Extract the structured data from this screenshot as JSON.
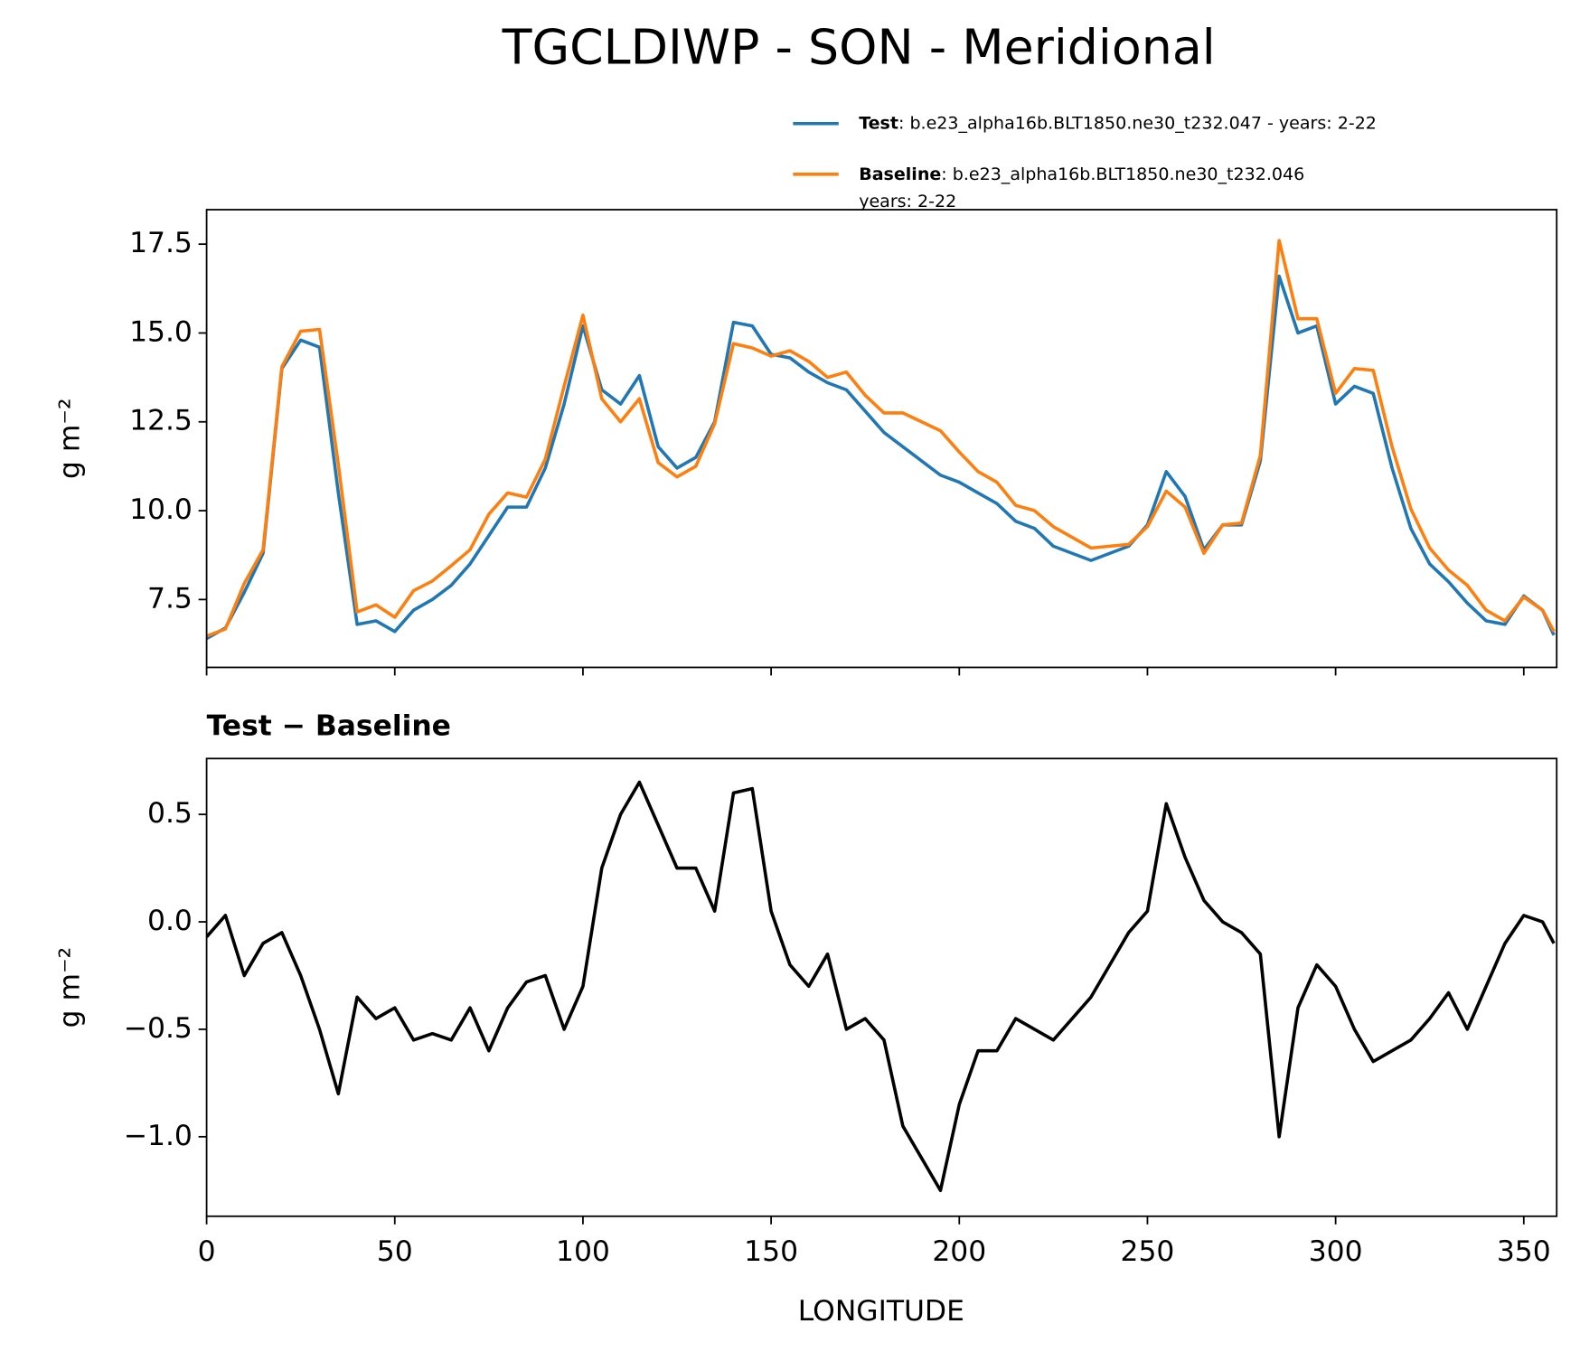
{
  "chart_data": [
    {
      "type": "line",
      "title": "TGCLDIWP - SON - Meridional",
      "ylabel": "g m⁻²",
      "x": [
        0,
        5,
        10,
        15,
        20,
        25,
        30,
        35,
        40,
        45,
        50,
        55,
        60,
        65,
        70,
        75,
        80,
        85,
        90,
        95,
        100,
        105,
        110,
        115,
        120,
        125,
        130,
        135,
        140,
        145,
        150,
        155,
        160,
        165,
        170,
        175,
        180,
        185,
        190,
        195,
        200,
        205,
        210,
        215,
        220,
        225,
        230,
        235,
        240,
        245,
        250,
        255,
        260,
        265,
        270,
        275,
        280,
        285,
        290,
        295,
        300,
        305,
        310,
        315,
        320,
        325,
        330,
        335,
        340,
        345,
        350,
        355,
        358
      ],
      "series": [
        {
          "name": "Test",
          "description": [
            ": b.e23_alpha16b.BLT1850.ne30_t232.047 - years: 2-22"
          ],
          "color": "#1f77b4",
          "values": [
            6.4,
            6.7,
            7.7,
            8.8,
            14.0,
            14.8,
            14.6,
            10.5,
            6.8,
            6.9,
            6.6,
            7.2,
            7.5,
            7.9,
            8.5,
            9.3,
            10.1,
            10.1,
            11.2,
            13.0,
            15.2,
            13.4,
            13.0,
            13.8,
            11.8,
            11.2,
            11.5,
            12.5,
            15.3,
            15.2,
            14.4,
            14.3,
            13.9,
            13.6,
            13.4,
            12.8,
            12.2,
            11.8,
            11.4,
            11.0,
            10.8,
            10.5,
            10.2,
            9.7,
            9.5,
            9.0,
            8.8,
            8.6,
            8.8,
            9.0,
            9.6,
            11.1,
            10.4,
            8.9,
            9.6,
            9.6,
            11.4,
            16.6,
            15.0,
            15.2,
            13.0,
            13.5,
            13.3,
            11.2,
            9.5,
            8.5,
            8.0,
            7.4,
            6.9,
            6.8,
            7.6,
            7.2,
            6.5
          ]
        },
        {
          "name": "Baseline",
          "description": [
            ": b.e23_alpha16b.BLT1850.ne30_t232.046",
            "years: 2-22"
          ],
          "color": "#ff7f0e",
          "values": [
            6.47,
            6.67,
            7.95,
            8.9,
            14.05,
            15.05,
            15.1,
            11.3,
            7.15,
            7.35,
            7.0,
            7.75,
            8.02,
            8.45,
            8.9,
            9.9,
            10.5,
            10.38,
            11.45,
            13.5,
            15.5,
            13.15,
            12.5,
            13.15,
            11.35,
            10.95,
            11.25,
            12.45,
            14.7,
            14.58,
            14.35,
            14.5,
            14.2,
            13.75,
            13.9,
            13.25,
            12.75,
            12.75,
            12.5,
            12.25,
            11.65,
            11.1,
            10.8,
            10.15,
            10.0,
            9.55,
            9.25,
            8.95,
            9.0,
            9.05,
            9.55,
            10.55,
            10.1,
            8.8,
            9.6,
            9.65,
            11.55,
            17.6,
            15.4,
            15.4,
            13.3,
            14.0,
            13.95,
            11.8,
            10.05,
            8.95,
            8.33,
            7.9,
            7.2,
            6.9,
            7.57,
            7.2,
            6.6
          ]
        }
      ],
      "xlim": [
        0,
        358.75
      ],
      "xticks": [
        0,
        50,
        100,
        150,
        200,
        250,
        300,
        350
      ],
      "ylim": [
        5.59,
        18.47
      ],
      "yticks": [
        7.5,
        {
          "value": 10,
          "label": "10.0"
        },
        12.5,
        {
          "value": 15,
          "label": "15.0"
        },
        17.5
      ]
    },
    {
      "type": "line",
      "title": "Test − Baseline",
      "ylabel": "g m⁻²",
      "xlabel": "LONGITUDE",
      "x": [
        0,
        5,
        10,
        15,
        20,
        25,
        30,
        35,
        40,
        45,
        50,
        55,
        60,
        65,
        70,
        75,
        80,
        85,
        90,
        95,
        100,
        105,
        110,
        115,
        120,
        125,
        130,
        135,
        140,
        145,
        150,
        155,
        160,
        165,
        170,
        175,
        180,
        185,
        190,
        195,
        200,
        205,
        210,
        215,
        220,
        225,
        230,
        235,
        240,
        245,
        250,
        255,
        260,
        265,
        270,
        275,
        280,
        285,
        290,
        295,
        300,
        305,
        310,
        315,
        320,
        325,
        330,
        335,
        340,
        345,
        350,
        355,
        358
      ],
      "series": [
        {
          "color": "#000000",
          "values": [
            -0.07,
            0.03,
            -0.25,
            -0.1,
            -0.05,
            -0.25,
            -0.5,
            -0.8,
            -0.35,
            -0.45,
            -0.4,
            -0.55,
            -0.52,
            -0.55,
            -0.4,
            -0.6,
            -0.4,
            -0.28,
            -0.25,
            -0.5,
            -0.3,
            0.25,
            0.5,
            0.65,
            0.45,
            0.25,
            0.25,
            0.05,
            0.6,
            0.62,
            0.05,
            -0.2,
            -0.3,
            -0.15,
            -0.5,
            -0.45,
            -0.55,
            -0.95,
            -1.1,
            -1.25,
            -0.85,
            -0.6,
            -0.6,
            -0.45,
            -0.5,
            -0.55,
            -0.45,
            -0.35,
            -0.2,
            -0.05,
            0.05,
            0.55,
            0.3,
            0.1,
            0.0,
            -0.05,
            -0.15,
            -1.0,
            -0.4,
            -0.2,
            -0.3,
            -0.5,
            -0.65,
            -0.6,
            -0.55,
            -0.45,
            -0.33,
            -0.5,
            -0.3,
            -0.1,
            0.03,
            0.0,
            -0.1
          ]
        }
      ],
      "xlim": [
        0,
        358.75
      ],
      "xticks": [
        0,
        50,
        100,
        150,
        200,
        250,
        300,
        350
      ],
      "ylim": [
        -1.37,
        0.76
      ],
      "yticks": [
        0.5,
        {
          "value": 0,
          "label": "0.0"
        },
        {
          "value": -0.5,
          "label": "−0.5"
        },
        {
          "value": -1,
          "label": "−1.0"
        }
      ]
    }
  ]
}
